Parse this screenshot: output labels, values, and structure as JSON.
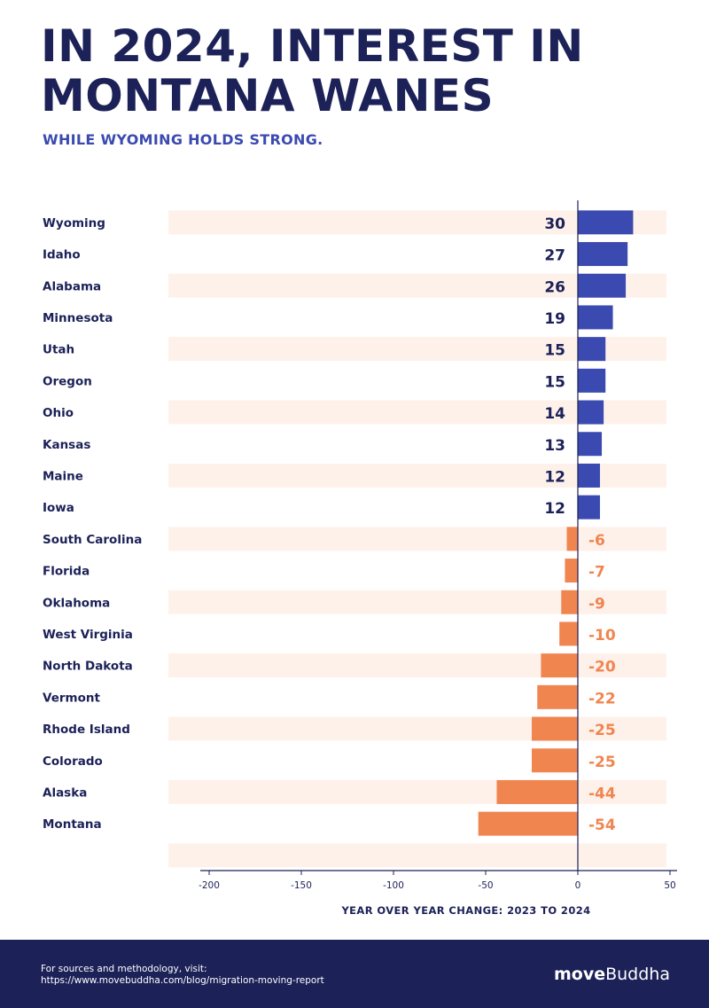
{
  "title_lines": [
    "IN 2024, INTEREST IN",
    "MONTANA WANES"
  ],
  "subtitle": "WHILE WYOMING HOLDS STRONG.",
  "chart_data": {
    "type": "bar",
    "orientation": "horizontal",
    "categories": [
      "Wyoming",
      "Idaho",
      "Alabama",
      "Minnesota",
      "Utah",
      "Oregon",
      "Ohio",
      "Kansas",
      "Maine",
      "Iowa",
      "South Carolina",
      "Florida",
      "Oklahoma",
      "West Virginia",
      "North Dakota",
      "Vermont",
      "Rhode Island",
      "Colorado",
      "Alaska",
      "Montana"
    ],
    "values": [
      30,
      27,
      26,
      19,
      15,
      15,
      14,
      13,
      12,
      12,
      -6,
      -7,
      -9,
      -10,
      -20,
      -22,
      -25,
      -25,
      -44,
      -54
    ],
    "value_labels": [
      "30",
      "27",
      "26",
      "19",
      "15",
      "15",
      "14",
      "13",
      "12",
      "12",
      "-6",
      "-7",
      "-9",
      "-10",
      "-20",
      "-22",
      "-25",
      "-25",
      "-44",
      "-54"
    ],
    "xlabel": "YEAR OVER YEAR CHANGE: 2023 TO 2024",
    "xlim": [
      -200,
      50
    ],
    "x_ticks": [
      -200,
      -150,
      -100,
      -50,
      0,
      50
    ],
    "x_tick_labels": [
      "-200",
      "-150",
      "-100",
      "-50",
      "0",
      "50"
    ],
    "grid": false,
    "colors": {
      "positive": "#3b4ab0",
      "negative": "#f08550",
      "stripe": "#fef1ea",
      "axis": "#1c2158",
      "label": "#1c2158"
    }
  },
  "footer": {
    "lines": [
      "For sources and methodology, visit:",
      "https://www.movebuddha.com/blog/migration-moving-report"
    ],
    "logo_bold": "move",
    "logo_regular": "Buddha"
  }
}
